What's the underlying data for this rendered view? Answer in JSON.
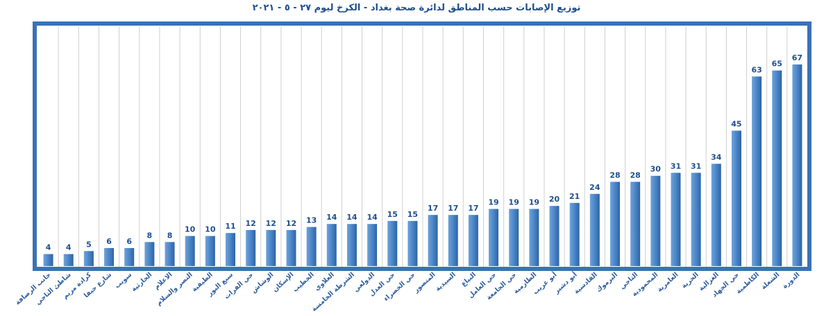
{
  "chart_data": {
    "type": "bar",
    "title": "توزيع الإصابات حسب المناطق لدائرة صحة بغداد - الكرخ ليوم ٢٧ - ٥ - ٢٠٢١",
    "xlabel": "",
    "ylabel": "",
    "ylim": [
      0,
      70
    ],
    "grid": "vertical",
    "legend": "none",
    "bar_color": "#4a86c8",
    "frame_color": "#3a72b5",
    "categories": [
      "جانب الرصافة",
      "شاطئ التاجي",
      "كرادة مريم",
      "شارع حيفا",
      "سويب",
      "الحارثية",
      "الاعلام",
      "النصر والسلام",
      "الطيفية",
      "سبع البور",
      "حي الفرات",
      "الوشاش",
      "الإسكان",
      "الخطيب",
      "العلاوي",
      "الشرطة الخامسة",
      "الدولعي",
      "حي العدل",
      "حي الخضراء",
      "المنصور",
      "السيدية",
      "البياع",
      "حي العامل",
      "حي الجامعة",
      "الطارمية",
      "أبو غريب",
      "أبو دشير",
      "القادسية",
      "اليرموك",
      "التاجي",
      "المحمودية",
      "العامرية",
      "الحرية",
      "الغزالية",
      "حي الجهاد",
      "الكاظمية",
      "الشعلة",
      "الدورة"
    ],
    "values": [
      4,
      4,
      5,
      6,
      6,
      8,
      8,
      10,
      10,
      11,
      12,
      12,
      12,
      13,
      14,
      14,
      14,
      15,
      15,
      17,
      17,
      17,
      19,
      19,
      19,
      20,
      21,
      24,
      28,
      28,
      30,
      31,
      31,
      34,
      45,
      63,
      65,
      67
    ]
  }
}
